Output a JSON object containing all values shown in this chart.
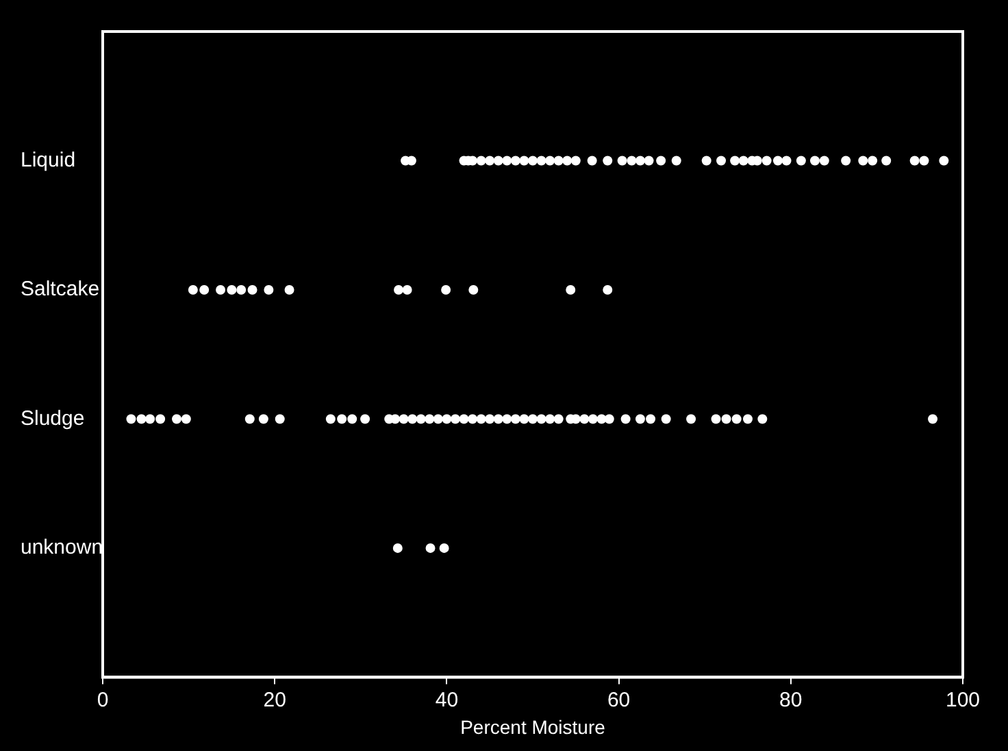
{
  "chart_data": {
    "type": "scatter",
    "orientation": "horizontal",
    "xlabel": "Percent Moisture",
    "categories": [
      "Liquid",
      "Saltcake",
      "Sludge",
      "unknown"
    ],
    "xlim": [
      0,
      100
    ],
    "xticks": [
      0,
      20,
      40,
      60,
      80,
      100
    ],
    "marker": "circle",
    "series": [
      {
        "color": "#ffffff",
        "x": [
          "Liquid",
          "Liquid",
          "Liquid",
          "Liquid",
          "Liquid",
          "Liquid",
          "Liquid",
          "Liquid",
          "Liquid",
          "Liquid",
          "Liquid",
          "Liquid",
          "Liquid",
          "Liquid",
          "Liquid",
          "Liquid",
          "Liquid",
          "Liquid",
          "Liquid",
          "Liquid",
          "Liquid",
          "Liquid",
          "Liquid",
          "Liquid",
          "Liquid",
          "Liquid",
          "Liquid",
          "Liquid",
          "Liquid",
          "Liquid",
          "Liquid",
          "Liquid",
          "Liquid",
          "Liquid",
          "Liquid",
          "Liquid",
          "Liquid",
          "Liquid",
          "Liquid",
          "Liquid",
          "Liquid",
          "Liquid",
          "Liquid",
          "Liquid"
        ],
        "values": [
          35.2,
          35.9,
          42,
          42.5,
          43,
          44,
          45,
          46,
          47,
          48,
          49,
          50,
          51,
          52,
          53,
          54,
          55,
          56.9,
          58.7,
          60.4,
          61.5,
          62.5,
          63.5,
          64.9,
          66.7,
          70.2,
          71.9,
          73.5,
          74.5,
          75.5,
          76.1,
          77.2,
          78.5,
          79.5,
          81.2,
          82.8,
          83.9,
          86.4,
          88.4,
          89.5,
          91.1,
          94.4,
          95.5,
          97.8
        ]
      },
      {
        "color": "#ffffff",
        "x": [
          "Saltcake",
          "Saltcake",
          "Saltcake",
          "Saltcake",
          "Saltcake",
          "Saltcake",
          "Saltcake",
          "Saltcake",
          "Saltcake",
          "Saltcake",
          "Saltcake",
          "Saltcake",
          "Saltcake",
          "Saltcake"
        ],
        "values": [
          10.5,
          11.8,
          13.7,
          15,
          16.1,
          17.4,
          19.3,
          21.7,
          34.4,
          35.4,
          39.9,
          43.1,
          54.4,
          58.7
        ]
      },
      {
        "color": "#ffffff",
        "x": [
          "Sludge",
          "Sludge",
          "Sludge",
          "Sludge",
          "Sludge",
          "Sludge",
          "Sludge",
          "Sludge",
          "Sludge",
          "Sludge",
          "Sludge",
          "Sludge",
          "Sludge",
          "Sludge",
          "Sludge",
          "Sludge",
          "Sludge",
          "Sludge",
          "Sludge",
          "Sludge",
          "Sludge",
          "Sludge",
          "Sludge",
          "Sludge",
          "Sludge",
          "Sludge",
          "Sludge",
          "Sludge",
          "Sludge",
          "Sludge",
          "Sludge",
          "Sludge",
          "Sludge",
          "Sludge",
          "Sludge",
          "Sludge",
          "Sludge",
          "Sludge",
          "Sludge",
          "Sludge",
          "Sludge",
          "Sludge",
          "Sludge",
          "Sludge",
          "Sludge",
          "Sludge",
          "Sludge",
          "Sludge",
          "Sludge",
          "Sludge",
          "Sludge"
        ],
        "values": [
          3.3,
          4.5,
          5.5,
          6.7,
          8.6,
          9.7,
          17.1,
          18.7,
          20.6,
          26.5,
          27.8,
          29,
          30.5,
          33.3,
          34,
          35,
          36,
          37,
          38,
          39,
          40,
          41,
          42,
          43,
          44,
          45,
          46,
          47,
          48,
          49,
          50,
          51,
          52,
          53,
          54.4,
          55,
          56,
          57,
          58,
          58.9,
          60.8,
          62.5,
          63.7,
          65.5,
          68.4,
          71.3,
          72.5,
          73.7,
          75,
          76.7,
          96.5
        ]
      },
      {
        "color": "#ffffff",
        "x": [
          "unknown",
          "unknown",
          "unknown"
        ],
        "values": [
          34.3,
          38.1,
          39.7
        ]
      }
    ]
  }
}
